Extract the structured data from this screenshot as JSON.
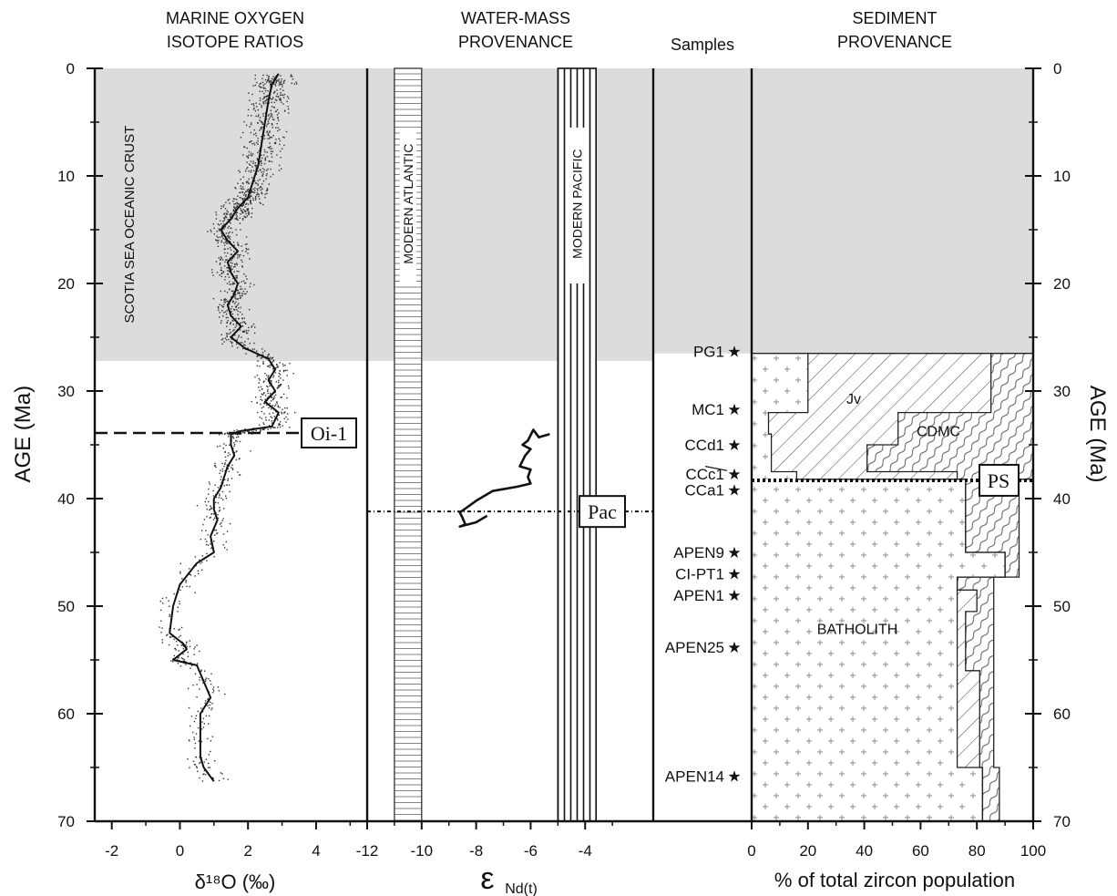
{
  "headers": {
    "oxygen": [
      "MARINE OXYGEN",
      "ISOTOPE RATIOS"
    ],
    "water": [
      "WATER-MASS",
      "PROVENANCE"
    ],
    "samples": "Samples",
    "sediment": [
      "SEDIMENT",
      "PROVENANCE"
    ]
  },
  "axis_labels": {
    "age_left": "AGE (Ma)",
    "age_right": "AGE (Ma)",
    "d18o": "δ¹⁸O (‰)",
    "end_main": "ε",
    "end_sub": "Nd(t)",
    "zircon": "% of total zircon population"
  },
  "annotations": {
    "scotia": "SCOTIA SEA OCEANIC CRUST",
    "oi1": "Oi-1",
    "pac": "Pac",
    "ps": "PS",
    "modern_atlantic": "MODERN ATLANTIC",
    "modern_pacific": "MODERN PACIFIC",
    "jv": "Jv",
    "cdmc": "CDMC",
    "batholith": "BATHOLITH"
  },
  "colors": {
    "shading": "#dcdcdc",
    "line": "#111111",
    "scatter": "#333333",
    "pattern": "#555555"
  },
  "chart_data": [
    {
      "type": "scatter",
      "panel": "oxygen",
      "xlabel": "δ18O (‰)",
      "ylabel": "AGE (Ma)",
      "xlim": [
        -2.5,
        5.5
      ],
      "ylim": [
        70,
        0
      ],
      "xticks": [
        "-2",
        "0",
        "2",
        "4"
      ],
      "yticks": [
        "0",
        "10",
        "20",
        "30",
        "40",
        "50",
        "60",
        "70"
      ],
      "series": [
        {
          "style": "smoothed-line",
          "points": [
            [
              2.9,
              0.5
            ],
            [
              2.7,
              1.5
            ],
            [
              2.6,
              3
            ],
            [
              2.5,
              5
            ],
            [
              2.4,
              7
            ],
            [
              2.3,
              9
            ],
            [
              2.1,
              11
            ],
            [
              2.0,
              12
            ],
            [
              1.7,
              13
            ],
            [
              1.5,
              14
            ],
            [
              1.2,
              15
            ],
            [
              1.4,
              16
            ],
            [
              1.7,
              17
            ],
            [
              1.4,
              18
            ],
            [
              1.5,
              19
            ],
            [
              1.7,
              20
            ],
            [
              1.6,
              21
            ],
            [
              1.4,
              22
            ],
            [
              1.5,
              23
            ],
            [
              1.8,
              24
            ],
            [
              1.5,
              25
            ],
            [
              1.9,
              26
            ],
            [
              2.6,
              27
            ],
            [
              2.8,
              28
            ],
            [
              2.6,
              29
            ],
            [
              2.8,
              30
            ],
            [
              2.5,
              31
            ],
            [
              2.9,
              32
            ],
            [
              2.7,
              33.3
            ],
            [
              1.8,
              33.7
            ],
            [
              1.5,
              34
            ],
            [
              1.5,
              35
            ],
            [
              1.6,
              36
            ],
            [
              1.4,
              37
            ],
            [
              1.3,
              38
            ],
            [
              1.2,
              39
            ],
            [
              1.0,
              40
            ],
            [
              1.0,
              41
            ],
            [
              1.1,
              42
            ],
            [
              0.9,
              43.5
            ],
            [
              1.0,
              45
            ],
            [
              0.5,
              46
            ],
            [
              0.0,
              48
            ],
            [
              -0.2,
              50
            ],
            [
              -0.3,
              52.5
            ],
            [
              0.1,
              53.5
            ],
            [
              0.2,
              54
            ],
            [
              -0.2,
              55
            ],
            [
              0.5,
              55.5
            ],
            [
              0.7,
              57
            ],
            [
              0.9,
              58.5
            ],
            [
              0.6,
              60
            ],
            [
              0.6,
              62
            ],
            [
              0.6,
              64
            ],
            [
              0.7,
              65
            ],
            [
              1.0,
              66.3
            ]
          ]
        }
      ],
      "shaded_age_range": [
        0,
        27.2
      ],
      "events": [
        {
          "label": "Oi-1",
          "age": 33.9
        }
      ]
    },
    {
      "type": "line",
      "panel": "water-mass",
      "xlabel": "εNd(t)",
      "xlim": [
        -12,
        -1.5
      ],
      "ylim": [
        70,
        0
      ],
      "xticks": [
        "-12",
        "-10",
        "-8",
        "-6",
        "-4"
      ],
      "bands": [
        {
          "name": "MODERN ATLANTIC",
          "range": [
            -11,
            -10
          ]
        },
        {
          "name": "MODERN PACIFIC",
          "range": [
            -5,
            -3.6
          ]
        }
      ],
      "series": [
        {
          "points": [
            [
              -5.3,
              34
            ],
            [
              -5.7,
              34.3
            ],
            [
              -5.9,
              33.6
            ],
            [
              -6.1,
              34.6
            ],
            [
              -6.3,
              35.0
            ],
            [
              -6.0,
              35.4
            ],
            [
              -6.2,
              36
            ],
            [
              -6.4,
              37
            ],
            [
              -6.0,
              37.3
            ],
            [
              -6.1,
              38
            ],
            [
              -6.0,
              38.6
            ],
            [
              -6.5,
              38.9
            ],
            [
              -7.4,
              39.3
            ],
            [
              -8.0,
              40.2
            ],
            [
              -8.6,
              41.3
            ],
            [
              -8.5,
              41.8
            ],
            [
              -8.4,
              42.4
            ],
            [
              -8.6,
              42.6
            ],
            [
              -8.0,
              42.2
            ],
            [
              -7.6,
              41.6
            ]
          ]
        }
      ],
      "events": [
        {
          "label": "Pac",
          "age": 41.2
        }
      ]
    },
    {
      "type": "table",
      "panel": "samples",
      "samples": [
        {
          "name": "PG1",
          "age": 26.3
        },
        {
          "name": "MC1",
          "age": 31.7
        },
        {
          "name": "CCd1",
          "age": 35.0
        },
        {
          "name": "CCc1",
          "age": 37.7
        },
        {
          "name": "CCa1",
          "age": 39.2
        },
        {
          "name": "APEN9",
          "age": 45.0
        },
        {
          "name": "CI-PT1",
          "age": 47.0
        },
        {
          "name": "APEN1",
          "age": 49.0
        },
        {
          "name": "APEN25",
          "age": 53.8
        },
        {
          "name": "APEN14",
          "age": 65.8
        }
      ]
    },
    {
      "type": "area",
      "panel": "sediment",
      "xlabel": "% of total zircon population",
      "xlim": [
        0,
        100
      ],
      "ylim": [
        70,
        0
      ],
      "xticks": [
        "0",
        "20",
        "40",
        "60",
        "80",
        "100"
      ],
      "yticks": [
        "0",
        "10",
        "20",
        "30",
        "40",
        "50",
        "60",
        "70"
      ],
      "components": [
        "BATHOLITH",
        "Jv",
        "CDMC"
      ],
      "boundaries": {
        "batholith_jv": [
          [
            20,
            26.5
          ],
          [
            20,
            32
          ],
          [
            6,
            32
          ],
          [
            6,
            34
          ],
          [
            7,
            34
          ],
          [
            7,
            37.5
          ],
          [
            16,
            37.5
          ],
          [
            16,
            38.2
          ],
          [
            76,
            38.2
          ],
          [
            76,
            45
          ],
          [
            90,
            45
          ],
          [
            90,
            47.3
          ],
          [
            73,
            47.3
          ],
          [
            73,
            65
          ],
          [
            82,
            65
          ],
          [
            82,
            70
          ]
        ],
        "jv_cdmc": [
          [
            85,
            26.5
          ],
          [
            85,
            32
          ],
          [
            52,
            32
          ],
          [
            52,
            35
          ],
          [
            41,
            35
          ],
          [
            41,
            37.5
          ],
          [
            73,
            37.5
          ],
          [
            73,
            38.2
          ],
          [
            76,
            38.2
          ],
          [
            76,
            45
          ],
          [
            90,
            45
          ],
          [
            90,
            47.3
          ],
          [
            73,
            47.3
          ],
          [
            73,
            48.5
          ],
          [
            80,
            48.5
          ],
          [
            80,
            50.5
          ],
          [
            76,
            50.5
          ],
          [
            76,
            56
          ],
          [
            81,
            56
          ],
          [
            81,
            65
          ],
          [
            82,
            65
          ],
          [
            82,
            70
          ]
        ],
        "cdmc_total": [
          [
            100,
            26.5
          ],
          [
            100,
            38.2
          ],
          [
            95,
            38.2
          ],
          [
            95,
            47.3
          ],
          [
            86,
            47.3
          ],
          [
            86,
            65
          ],
          [
            88,
            65
          ],
          [
            88,
            70
          ]
        ]
      },
      "events": [
        {
          "label": "PS",
          "age": 38.3
        }
      ]
    }
  ]
}
